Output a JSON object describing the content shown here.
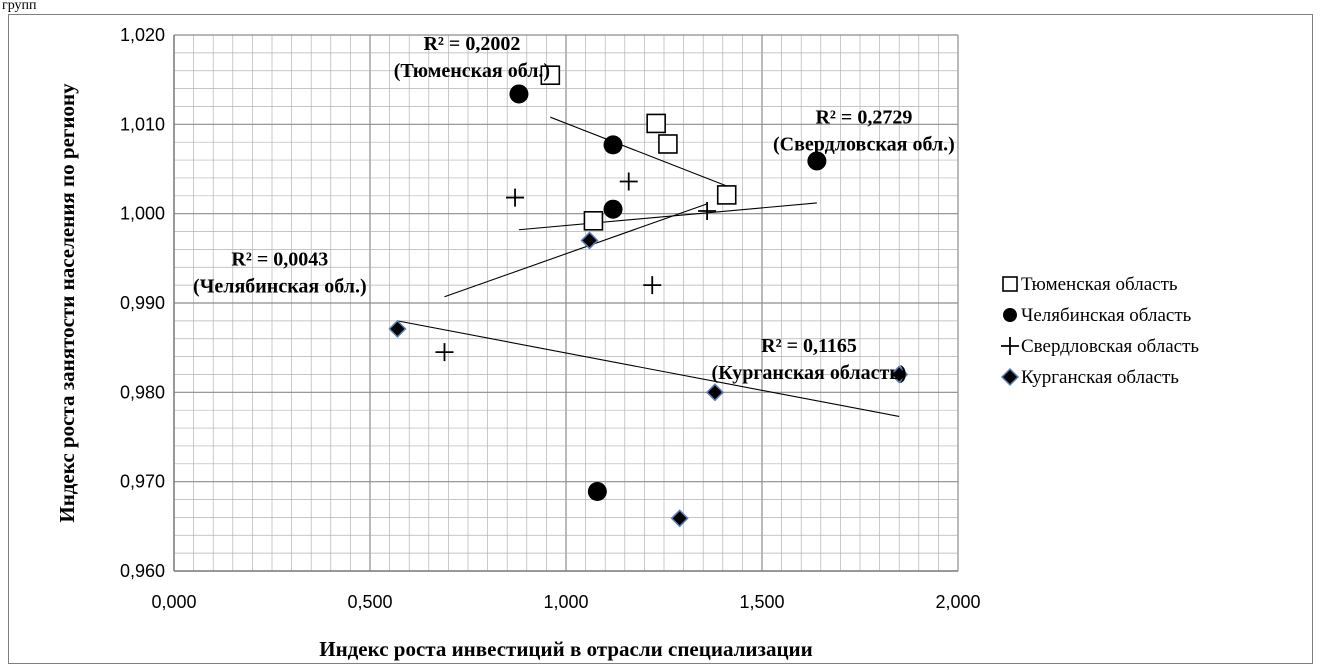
{
  "caption": "групп",
  "chart_data": {
    "type": "scatter",
    "title": "",
    "xlabel": "Индекс роста инвестиций в отрасли специализации",
    "ylabel": "Индекс роста занятости населения по региону",
    "xlim": [
      0,
      2
    ],
    "ylim": [
      0.96,
      1.02
    ],
    "x_ticks": [
      "0,000",
      "0,500",
      "1,000",
      "1,500",
      "2,000"
    ],
    "y_ticks": [
      "0,960",
      "0,970",
      "0,980",
      "0,990",
      "1,000",
      "1,010",
      "1,020"
    ],
    "grid": true,
    "legend_position": "right",
    "series": [
      {
        "name": "Тюменская область",
        "marker": "square-open",
        "points": [
          [
            0.96,
            1.0155
          ],
          [
            1.23,
            1.0101
          ],
          [
            1.26,
            1.0078
          ],
          [
            1.41,
            1.0021
          ],
          [
            1.07,
            0.9992
          ]
        ],
        "trend": [
          [
            0.96,
            1.0108
          ],
          [
            1.41,
            1.0031
          ]
        ]
      },
      {
        "name": "Челябинская область",
        "marker": "circle-filled",
        "points": [
          [
            0.88,
            1.0134
          ],
          [
            1.12,
            1.0077
          ],
          [
            1.64,
            1.0059
          ],
          [
            1.12,
            1.0005
          ],
          [
            1.08,
            0.9689
          ]
        ],
        "trend": [
          [
            0.88,
            0.9982
          ],
          [
            1.64,
            1.0012
          ]
        ]
      },
      {
        "name": "Свердловская область",
        "marker": "plus",
        "points": [
          [
            0.87,
            1.0018
          ],
          [
            1.16,
            1.0036
          ],
          [
            1.36,
            1.0003
          ],
          [
            1.22,
            0.992
          ],
          [
            0.69,
            0.9845
          ]
        ],
        "trend": [
          [
            0.69,
            0.9907
          ],
          [
            1.36,
            1.0011
          ]
        ]
      },
      {
        "name": "Курганская область",
        "marker": "diamond",
        "points": [
          [
            0.57,
            0.9871
          ],
          [
            1.06,
            0.997
          ],
          [
            1.38,
            0.98
          ],
          [
            1.85,
            0.982
          ],
          [
            1.29,
            0.9659
          ]
        ],
        "trend": [
          [
            0.57,
            0.988
          ],
          [
            1.85,
            0.9773
          ]
        ]
      }
    ],
    "annotations": [
      {
        "lines": [
          "R² = 0,2002",
          "(Тюменская обл.)"
        ],
        "x": 0.76,
        "y": 1.0183
      },
      {
        "lines": [
          "R² = 0,2729",
          "(Свердловская обл.)"
        ],
        "x": 1.76,
        "y": 1.0101
      },
      {
        "lines": [
          "R² = 0,0043",
          "(Челябинская обл.)"
        ],
        "x": 0.27,
        "y": 0.9942
      },
      {
        "lines": [
          "R² = 0,1165",
          "(Курганская область)"
        ],
        "x": 1.62,
        "y": 0.9845
      }
    ]
  },
  "colors": {
    "grid": "#b3b3b3",
    "axis": "#7f7f7f",
    "marker": "#000000",
    "diamond_outline": "#5b7fb8"
  }
}
